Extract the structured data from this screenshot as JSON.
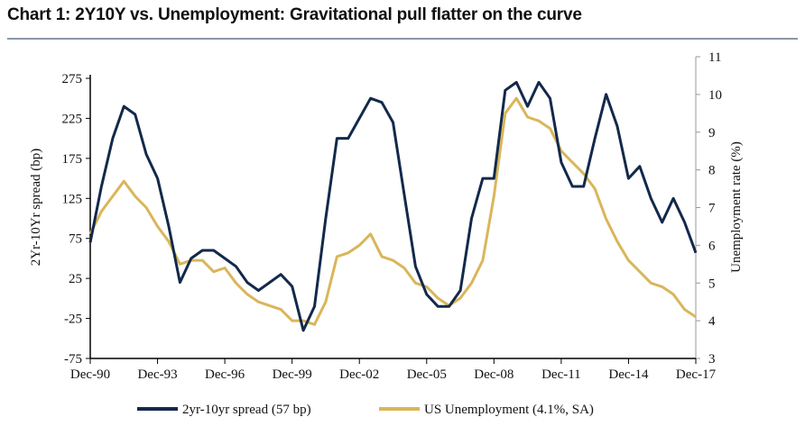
{
  "title": "Chart 1: 2Y10Y vs. Unemployment: Gravitational pull flatter on the curve",
  "chart_data": {
    "type": "line",
    "title": "Chart 1: 2Y10Y vs. Unemployment: Gravitational pull flatter on the curve",
    "xlabel": "",
    "ylabel": "2Yr-10Yr spread (bp)",
    "y2label": "Unemployment rate (%)",
    "ylim": [
      -75,
      300
    ],
    "y2lim": [
      3,
      11
    ],
    "yticks": [
      "275",
      "225",
      "175",
      "125",
      "75",
      "25",
      "-25",
      "-75"
    ],
    "y2ticks": [
      "11",
      "10",
      "9",
      "8",
      "7",
      "6",
      "5",
      "4",
      "3"
    ],
    "xticks": [
      "Dec-90",
      "Dec-93",
      "Dec-96",
      "Dec-99",
      "Dec-02",
      "Dec-05",
      "Dec-08",
      "Dec-11",
      "Dec-14",
      "Dec-17"
    ],
    "x_start_year": 1990.92,
    "x_end_year": 2017.92,
    "x_step_years": 0.5,
    "grid": false,
    "legend_position": "bottom",
    "series": [
      {
        "name": "2yr-10yr spread (57 bp)",
        "axis": "left",
        "color": "#13294b",
        "values": [
          70,
          140,
          200,
          240,
          230,
          180,
          150,
          90,
          20,
          50,
          60,
          60,
          50,
          40,
          20,
          10,
          20,
          30,
          15,
          -40,
          -10,
          100,
          200,
          200,
          225,
          250,
          245,
          220,
          130,
          40,
          5,
          -10,
          -10,
          10,
          100,
          150,
          150,
          260,
          270,
          240,
          270,
          250,
          170,
          140,
          140,
          200,
          255,
          215,
          150,
          165,
          125,
          95,
          125,
          95,
          57
        ]
      },
      {
        "name": "US Unemployment (4.1%, SA)",
        "axis": "right",
        "color": "#d9b65a",
        "values": [
          6.3,
          6.9,
          7.3,
          7.7,
          7.3,
          7.0,
          6.5,
          6.1,
          5.5,
          5.6,
          5.6,
          5.3,
          5.4,
          5.0,
          4.7,
          4.5,
          4.4,
          4.3,
          4.0,
          4.0,
          3.9,
          4.5,
          5.7,
          5.8,
          6.0,
          6.3,
          5.7,
          5.6,
          5.4,
          5.0,
          4.9,
          4.6,
          4.4,
          4.6,
          5.0,
          5.6,
          7.3,
          9.5,
          9.9,
          9.4,
          9.3,
          9.1,
          8.5,
          8.2,
          7.9,
          7.5,
          6.7,
          6.1,
          5.6,
          5.3,
          5.0,
          4.9,
          4.7,
          4.3,
          4.1
        ]
      }
    ]
  }
}
